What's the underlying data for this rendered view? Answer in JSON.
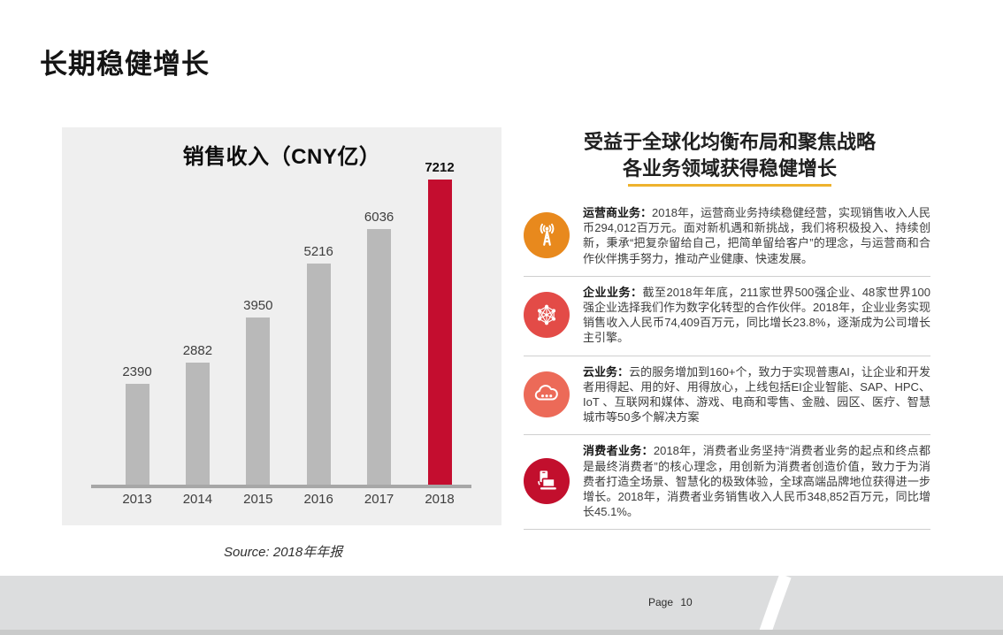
{
  "slide": {
    "title": "长期稳健增长",
    "source": "Source: 2018年年报",
    "page_label": "Page 10",
    "accent_red": "#c40d2f"
  },
  "chart_data": {
    "type": "bar",
    "title": "销售收入（CNY亿）",
    "categories": [
      "2013",
      "2014",
      "2015",
      "2016",
      "2017",
      "2018"
    ],
    "values": [
      2390,
      2882,
      3950,
      5216,
      6036,
      7212
    ],
    "highlight_index": 5,
    "bar_color": "#b9b9b9",
    "highlight_color": "#c40d2f",
    "xlabel": "",
    "ylabel": "",
    "ylim": [
      0,
      7600
    ],
    "grid": false,
    "legend": false,
    "data_labels": true
  },
  "right_panel": {
    "heading_line1": "受益于全球化均衡布局和聚焦战略",
    "heading_line2": "各业务领域获得稳健增长",
    "underline_color": "#eeb22d",
    "sections": [
      {
        "icon": "antenna-tower-icon",
        "icon_color": "#e8891d",
        "label": "运营商业务：",
        "text": "2018年，运营商业务持续稳健经营，实现销售收入人民币294,012百万元。面对新机遇和新挑战，我们将积极投入、持续创新，秉承“把复杂留给自己，把简单留给客户”的理念，与运营商和合作伙伴携手努力，推动产业健康、快速发展。"
      },
      {
        "icon": "network-mesh-icon",
        "icon_color": "#e34b47",
        "label": "企业业务：",
        "text": "截至2018年年底，211家世界500强企业、48家世界100强企业选择我们作为数字化转型的合作伙伴。2018年，企业业务实现销售收入人民币74,409百万元，同比增长23.8%，逐渐成为公司增长主引擎。"
      },
      {
        "icon": "cloud-icon",
        "icon_color": "#ec6a58",
        "label": "云业务：",
        "text": "云的服务增加到160+个，致力于实现普惠AI，让企业和开发者用得起、用的好、用得放心，上线包括EI企业智能、SAP、HPC、IoT 、互联网和媒体、游戏、电商和零售、金融、园区、医疗、智慧城市等50多个解决方案"
      },
      {
        "icon": "phone-laptop-icon",
        "icon_color": "#c20f2d",
        "label": "消费者业务：",
        "text": "2018年，消费者业务坚持“消费者业务的起点和终点都是最终消费者”的核心理念，用创新为消费者创造价值，致力于为消费者打造全场景、智慧化的极致体验，全球高端品牌地位获得进一步增长。2018年，消费者业务销售收入人民币348,852百万元，同比增长45.1%。"
      }
    ]
  }
}
